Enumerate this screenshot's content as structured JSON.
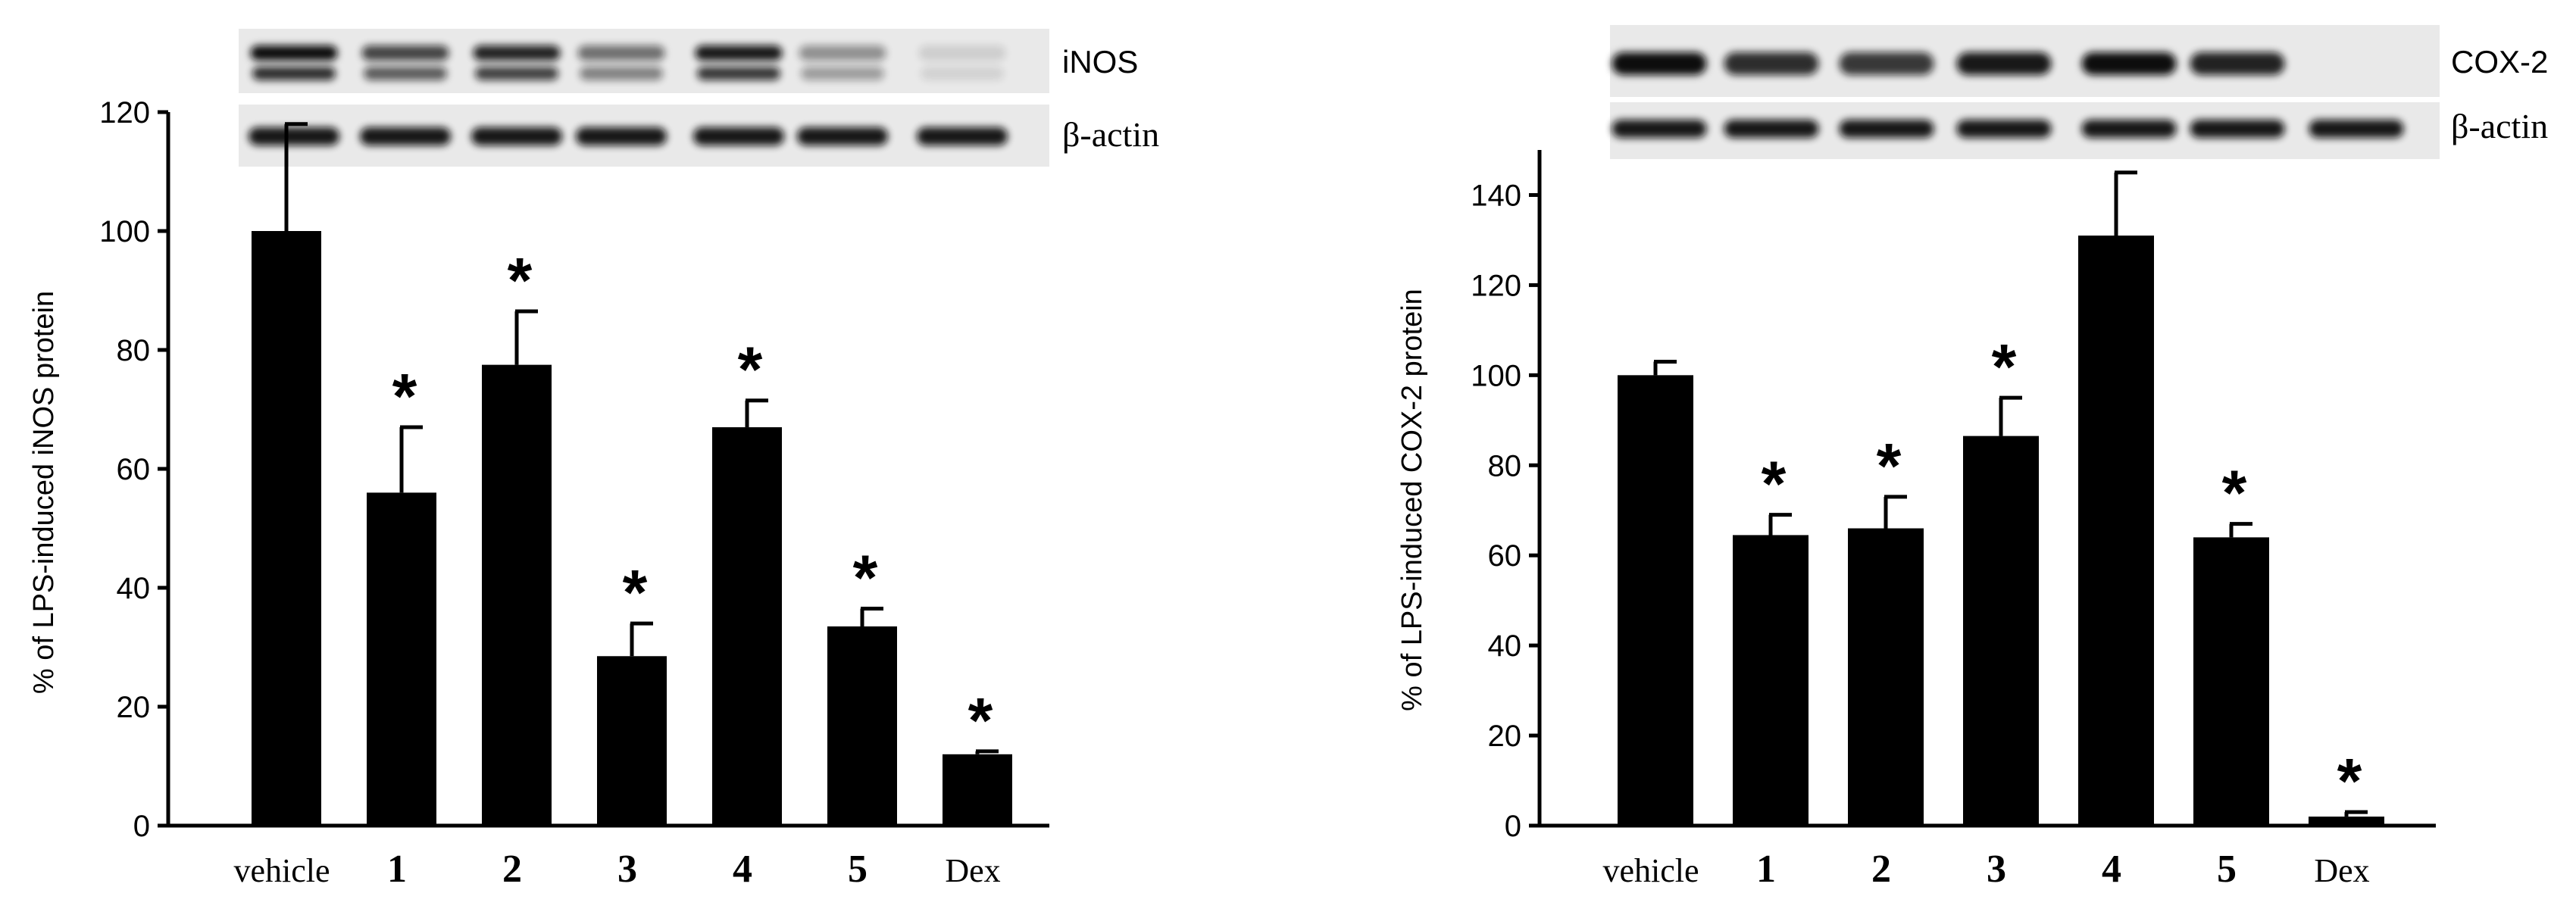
{
  "chart_data": [
    {
      "type": "bar",
      "categories": [
        "vehicle",
        "1",
        "2",
        "3",
        "4",
        "5",
        "Dex"
      ],
      "values": [
        100,
        56,
        77.5,
        28.5,
        67,
        33.5,
        12
      ],
      "errors": [
        18,
        11,
        9,
        5.5,
        4.5,
        3,
        0.5
      ],
      "significant": [
        false,
        true,
        true,
        true,
        true,
        true,
        true
      ],
      "significance_symbol": "*",
      "ylabel": "% of LPS-induced iNOS protein",
      "ylim": [
        0,
        120
      ],
      "yticks": [
        0,
        20,
        40,
        60,
        80,
        100,
        120
      ],
      "grid": false,
      "blot_labels": [
        "iNOS",
        "β-actin"
      ]
    },
    {
      "type": "bar",
      "categories": [
        "vehicle",
        "1",
        "2",
        "3",
        "4",
        "5",
        "Dex"
      ],
      "values": [
        100,
        64.5,
        66,
        86.5,
        131,
        64,
        2
      ],
      "errors": [
        3,
        4.5,
        7,
        8.5,
        14,
        3,
        1
      ],
      "significant": [
        false,
        true,
        true,
        true,
        false,
        true,
        true
      ],
      "significance_symbol": "*",
      "ylabel": "% of LPS-induced COX-2 protein",
      "ylim": [
        0,
        150
      ],
      "yticks": [
        0,
        20,
        40,
        60,
        80,
        100,
        120,
        140
      ],
      "grid": false,
      "blot_labels": [
        "COX-2",
        "β-actin"
      ]
    }
  ]
}
